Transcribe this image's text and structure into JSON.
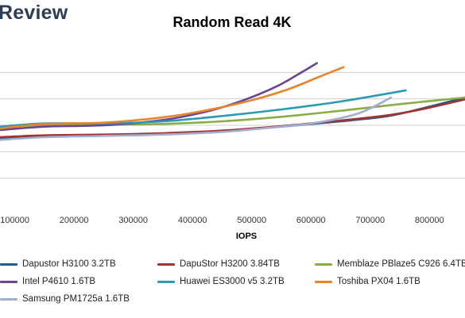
{
  "brand": {
    "text": "Review",
    "color": "#2c3d55"
  },
  "chart_data": {
    "type": "line",
    "title": "Random Read 4K",
    "xlabel": "IOPS",
    "ylabel": "",
    "xlim": [
      75000,
      860000
    ],
    "ylim": [
      0,
      6
    ],
    "x_ticks": [
      100000,
      200000,
      300000,
      400000,
      500000,
      600000,
      700000,
      800000
    ],
    "x_tick_labels": [
      "100000",
      "200000",
      "300000",
      "400000",
      "500000",
      "600000",
      "700000",
      "800000"
    ],
    "y_grid": [
      1,
      2,
      3,
      4,
      5
    ],
    "grid": true,
    "legend_position": "bottom",
    "series": [
      {
        "name": "Dapustor H3100 3.2TB",
        "color": "#1f5c8c",
        "points": [
          [
            75000,
            2.52
          ],
          [
            150000,
            2.6
          ],
          [
            250000,
            2.64
          ],
          [
            350000,
            2.68
          ],
          [
            450000,
            2.78
          ],
          [
            550000,
            2.95
          ],
          [
            650000,
            3.15
          ],
          [
            730000,
            3.35
          ],
          [
            790000,
            3.65
          ],
          [
            860000,
            4.05
          ]
        ]
      },
      {
        "name": "DapuStor H3200 3.84TB",
        "color": "#a33232",
        "points": [
          [
            75000,
            2.55
          ],
          [
            150000,
            2.62
          ],
          [
            250000,
            2.65
          ],
          [
            350000,
            2.7
          ],
          [
            450000,
            2.8
          ],
          [
            550000,
            2.97
          ],
          [
            650000,
            3.18
          ],
          [
            730000,
            3.38
          ],
          [
            790000,
            3.62
          ],
          [
            860000,
            3.98
          ]
        ]
      },
      {
        "name": "Memblaze PBlaze5 C926 6.4TB",
        "color": "#8aac46",
        "points": [
          [
            75000,
            2.92
          ],
          [
            150000,
            3.02
          ],
          [
            250000,
            3.02
          ],
          [
            350000,
            3.05
          ],
          [
            450000,
            3.15
          ],
          [
            550000,
            3.32
          ],
          [
            650000,
            3.55
          ],
          [
            750000,
            3.8
          ],
          [
            860000,
            4.05
          ]
        ]
      },
      {
        "name": "Intel P4610 1.6TB",
        "color": "#6b4592",
        "points": [
          [
            75000,
            2.82
          ],
          [
            150000,
            2.95
          ],
          [
            250000,
            3.0
          ],
          [
            350000,
            3.2
          ],
          [
            420000,
            3.5
          ],
          [
            480000,
            3.9
          ],
          [
            540000,
            4.45
          ],
          [
            580000,
            4.95
          ],
          [
            610000,
            5.35
          ]
        ]
      },
      {
        "name": "Huawei ES3000 v5 3.2TB",
        "color": "#2b9ab2",
        "points": [
          [
            75000,
            2.95
          ],
          [
            150000,
            3.07
          ],
          [
            250000,
            3.07
          ],
          [
            350000,
            3.15
          ],
          [
            450000,
            3.35
          ],
          [
            550000,
            3.6
          ],
          [
            650000,
            3.9
          ],
          [
            760000,
            4.32
          ]
        ]
      },
      {
        "name": "Toshiba PX04 1.6TB",
        "color": "#e8822c",
        "points": [
          [
            75000,
            2.88
          ],
          [
            150000,
            3.05
          ],
          [
            250000,
            3.1
          ],
          [
            350000,
            3.3
          ],
          [
            420000,
            3.55
          ],
          [
            500000,
            3.95
          ],
          [
            560000,
            4.35
          ],
          [
            610000,
            4.8
          ],
          [
            655000,
            5.2
          ]
        ]
      },
      {
        "name": "Samsung PM1725a 1.6TB",
        "color": "#a0aed0",
        "points": [
          [
            75000,
            2.45
          ],
          [
            150000,
            2.55
          ],
          [
            250000,
            2.6
          ],
          [
            350000,
            2.65
          ],
          [
            450000,
            2.75
          ],
          [
            550000,
            2.95
          ],
          [
            610000,
            3.1
          ],
          [
            680000,
            3.45
          ],
          [
            735000,
            4.05
          ]
        ]
      }
    ]
  }
}
